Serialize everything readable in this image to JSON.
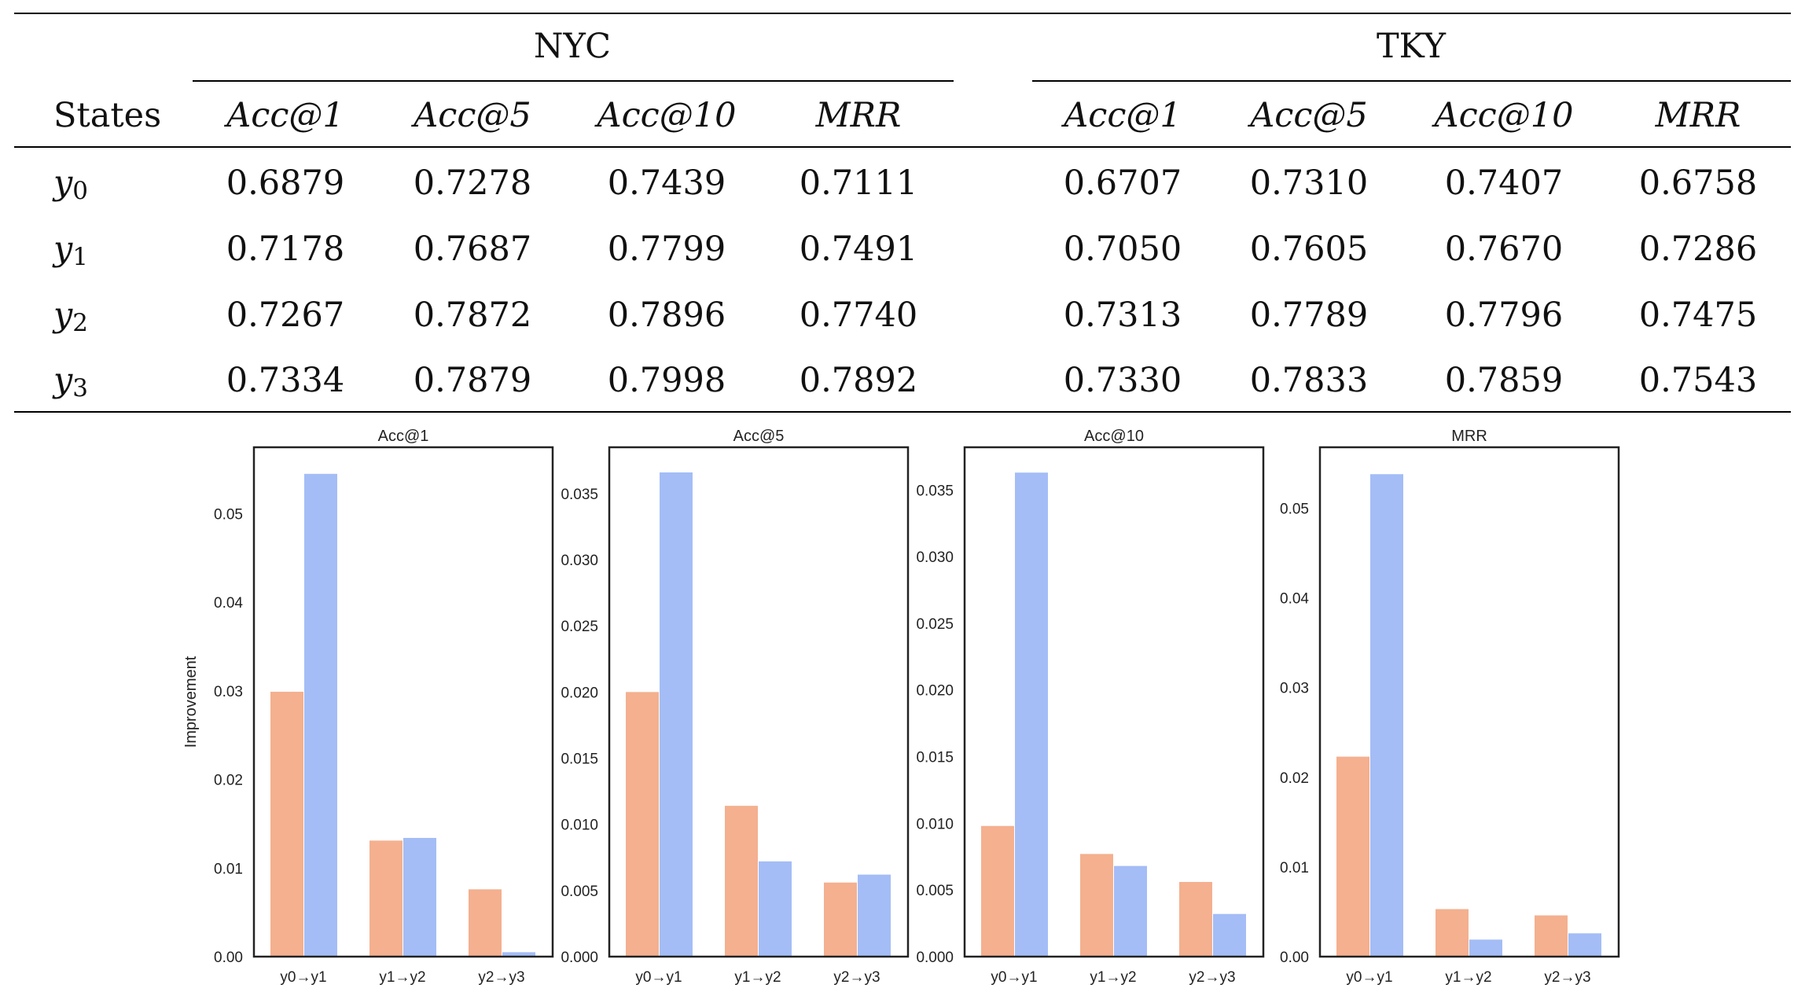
{
  "table": {
    "state_header": "States",
    "groups": [
      {
        "name": "NYC",
        "metrics": [
          "Acc@1",
          "Acc@5",
          "Acc@10",
          "MRR"
        ]
      },
      {
        "name": "TKY",
        "metrics": [
          "Acc@1",
          "Acc@5",
          "Acc@10",
          "MRR"
        ]
      }
    ],
    "rows": [
      {
        "state": "y",
        "sub": "0",
        "values": [
          "0.6879",
          "0.7278",
          "0.7439",
          "0.7111",
          "0.6707",
          "0.7310",
          "0.7407",
          "0.6758"
        ]
      },
      {
        "state": "y",
        "sub": "1",
        "values": [
          "0.7178",
          "0.7687",
          "0.7799",
          "0.7491",
          "0.7050",
          "0.7605",
          "0.7670",
          "0.7286"
        ]
      },
      {
        "state": "y",
        "sub": "2",
        "values": [
          "0.7267",
          "0.7872",
          "0.7896",
          "0.7740",
          "0.7313",
          "0.7789",
          "0.7796",
          "0.7475"
        ]
      },
      {
        "state": "y",
        "sub": "3",
        "values": [
          "0.7334",
          "0.7879",
          "0.7998",
          "0.7892",
          "0.7330",
          "0.7833",
          "0.7859",
          "0.7543"
        ]
      }
    ]
  },
  "colors": {
    "series_a": "#f4b08f",
    "series_b": "#a4bdf6"
  },
  "chart_data": [
    {
      "type": "bar",
      "title": "Acc@1",
      "ylabel": "Improvement",
      "categories": [
        "y0→y1",
        "y1→y2",
        "y2→y3"
      ],
      "series": [
        {
          "values": [
            0.0299,
            0.0131,
            0.0076
          ]
        },
        {
          "values": [
            0.0545,
            0.0134,
            0.0005
          ]
        }
      ],
      "ylim": [
        0,
        0.0575
      ],
      "yticks": [
        "0.00",
        "0.01",
        "0.02",
        "0.03",
        "0.04",
        "0.05"
      ],
      "ytick_values": [
        0,
        0.01,
        0.02,
        0.03,
        0.04,
        0.05
      ]
    },
    {
      "type": "bar",
      "title": "Acc@5",
      "ylabel": "",
      "categories": [
        "y0→y1",
        "y1→y2",
        "y2→y3"
      ],
      "series": [
        {
          "values": [
            0.02,
            0.0114,
            0.0056
          ]
        },
        {
          "values": [
            0.0366,
            0.0072,
            0.0062
          ]
        }
      ],
      "ylim": [
        0,
        0.0385
      ],
      "yticks": [
        "0.000",
        "0.005",
        "0.010",
        "0.015",
        "0.020",
        "0.025",
        "0.030",
        "0.035"
      ],
      "ytick_values": [
        0,
        0.005,
        0.01,
        0.015,
        0.02,
        0.025,
        0.03,
        0.035
      ]
    },
    {
      "type": "bar",
      "title": "Acc@10",
      "ylabel": "",
      "categories": [
        "y0→y1",
        "y1→y2",
        "y2→y3"
      ],
      "series": [
        {
          "values": [
            0.0098,
            0.0077,
            0.0056
          ]
        },
        {
          "values": [
            0.0363,
            0.0068,
            0.0032
          ]
        }
      ],
      "ylim": [
        0,
        0.0382
      ],
      "yticks": [
        "0.000",
        "0.005",
        "0.010",
        "0.015",
        "0.020",
        "0.025",
        "0.030",
        "0.035"
      ],
      "ytick_values": [
        0,
        0.005,
        0.01,
        0.015,
        0.02,
        0.025,
        0.03,
        0.035
      ]
    },
    {
      "type": "bar",
      "title": "MRR",
      "ylabel": "",
      "categories": [
        "y0→y1",
        "y1→y2",
        "y2→y3"
      ],
      "series": [
        {
          "values": [
            0.0223,
            0.0053,
            0.0046
          ]
        },
        {
          "values": [
            0.0538,
            0.0019,
            0.0026
          ]
        }
      ],
      "ylim": [
        0,
        0.0568
      ],
      "yticks": [
        "0.00",
        "0.01",
        "0.02",
        "0.03",
        "0.04",
        "0.05"
      ],
      "ytick_values": [
        0,
        0.01,
        0.02,
        0.03,
        0.04,
        0.05
      ]
    }
  ]
}
